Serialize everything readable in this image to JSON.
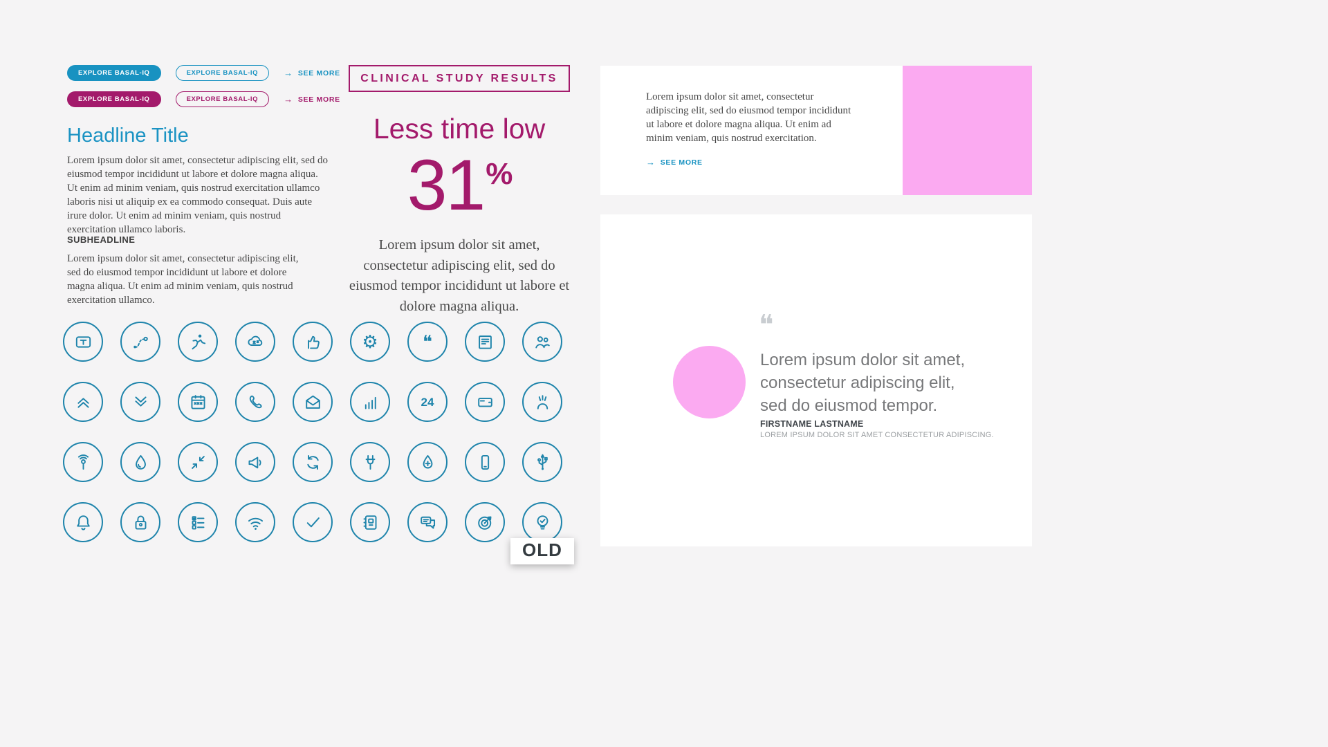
{
  "colors": {
    "teal": "#1892c1",
    "icon_teal": "#1e84ab",
    "magenta": "#a31a6b",
    "pink": "#fbaaf1",
    "background": "#f5f4f5"
  },
  "buttons_section": {
    "row_teal": {
      "solid_label": "EXPLORE BASAL-IQ",
      "outline_label": "EXPLORE BASAL-IQ",
      "arrow": "→",
      "see_more_label": "SEE MORE"
    },
    "row_magenta": {
      "solid_label": "EXPLORE BASAL-IQ",
      "outline_label": "EXPLORE BASAL-IQ",
      "arrow": "→",
      "see_more_label": "SEE MORE"
    }
  },
  "headline_section": {
    "title": "Headline Title",
    "body": "Lorem ipsum dolor sit amet, consectetur adipiscing elit, sed do eiusmod tempor incididunt ut labore et dolore magna aliqua. Ut enim ad minim veniam, quis nostrud exercitation ullamco laboris nisi ut aliquip ex ea commodo consequat. Duis aute irure dolor. Ut enim ad minim veniam, quis nostrud exercitation ullamco laboris.",
    "subheadline_title": "SUBHEADLINE",
    "subheadline_body": "Lorem ipsum dolor sit amet, consectetur adipiscing elit, sed do eiusmod tempor incididunt ut labore et dolore magna aliqua. Ut enim ad minim veniam, quis nostrud exercitation ullamco."
  },
  "study_section": {
    "badge_label": "CLINICAL STUDY RESULTS",
    "heading": "Less time low",
    "stat_value": "31",
    "stat_unit": "%",
    "body": "Lorem ipsum dolor sit amet, consectetur adipiscing elit, sed do eiusmod tempor incididunt ut labore et dolore magna aliqua."
  },
  "icon_grid": {
    "icons": [
      "text-frame-icon",
      "route-icon",
      "running-person-icon",
      "sleep-cloud-icon",
      "thumbs-up-icon",
      "gear-icon",
      "quote-icon",
      "newspaper-icon",
      "family-icon",
      "chevrons-up-icon",
      "chevrons-down-icon",
      "calendar-icon",
      "phone-icon",
      "open-email-icon",
      "growth-chart-icon",
      "support-24-icon",
      "card-reader-icon",
      "teamwork-icon",
      "touch-tap-icon",
      "water-drop-icon",
      "minimize-arrows-icon",
      "megaphone-icon",
      "refresh-icon",
      "plug-icon",
      "water-drop-plus-icon",
      "mobile-phone-icon",
      "usb-icon",
      "bell-icon",
      "lock-icon",
      "checklist-icon",
      "wifi-icon",
      "checkmark-icon",
      "address-book-icon",
      "chat-bubbles-icon",
      "target-icon",
      "lightbulb-check-icon"
    ]
  },
  "old_badge": {
    "label": "OLD"
  },
  "promo_card": {
    "body": "Lorem ipsum dolor sit amet, consectetur adipiscing elit, sed do eiusmod tempor incididunt ut labore et dolore magna aliqua. Ut enim ad minim veniam, quis nostrud exercitation.",
    "arrow": "→",
    "see_more_label": "SEE MORE"
  },
  "quote_card": {
    "quote_mark": "❝",
    "quote": "Lorem ipsum dolor sit amet, consectetur adipiscing elit, sed do eiusmod tempor.",
    "name": "FIRSTNAME LASTNAME",
    "title": "LOREM IPSUM DOLOR SIT AMET CONSECTETUR ADIPISCING."
  }
}
